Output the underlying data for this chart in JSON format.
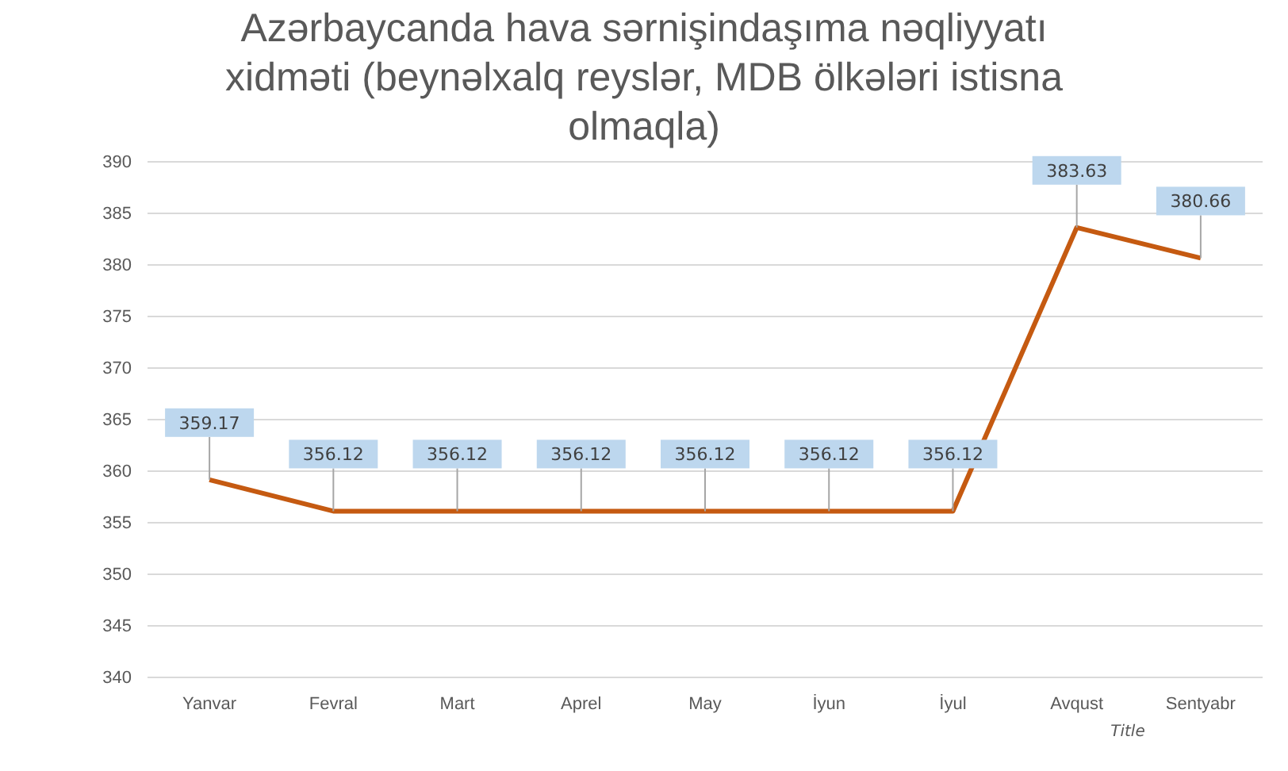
{
  "chart_data": {
    "type": "line",
    "title": "Azərbaycanda hava sərnişindaşıma nəqliyyatı xidməti (beynəlxalq reyslər, MDB ölkələri istisna olmaqla)",
    "xlabel": "Title",
    "categories": [
      "Yanvar",
      "Fevral",
      "Mart",
      "Aprel",
      "May",
      "İyun",
      "İyul",
      "Avqust",
      "Sentyabr"
    ],
    "series": [
      {
        "color": "#c55a11",
        "values": [
          359.17,
          356.12,
          356.12,
          356.12,
          356.12,
          356.12,
          356.12,
          383.63,
          380.66
        ]
      }
    ],
    "ylim": [
      340,
      390
    ],
    "yticks": [
      340,
      345,
      350,
      355,
      360,
      365,
      370,
      375,
      380,
      385,
      390
    ],
    "grid": "y",
    "marker": "none",
    "line_style": "solid",
    "data_labels": true
  }
}
